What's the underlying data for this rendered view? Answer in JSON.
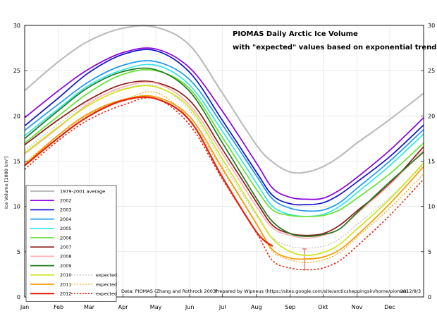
{
  "chart_data": {
    "type": "line",
    "title": "PIOMAS Daily Arctic Ice Volume",
    "subtitle": "with \"expected\" values based on exponential trends",
    "ylabel": "Ice Volume [1000 km³]",
    "xlabel": "",
    "ylim": [
      0,
      30
    ],
    "xlim": [
      0,
      365
    ],
    "yticks": [
      0,
      5,
      10,
      15,
      20,
      25,
      30
    ],
    "month_labels": [
      "Jan",
      "Feb",
      "Mar",
      "Apr",
      "May",
      "Jun",
      "Jul",
      "Aug",
      "Sep",
      "Okt",
      "Nov",
      "Dec"
    ],
    "month_days": [
      0,
      31,
      59,
      90,
      120,
      151,
      181,
      212,
      243,
      273,
      304,
      334
    ],
    "grid": true,
    "legend_position": "bottom-left",
    "expected_label": "expected",
    "x_days": [
      0,
      31,
      59,
      90,
      120,
      151,
      181,
      212,
      227,
      243,
      258,
      273,
      288,
      304,
      334,
      365
    ],
    "series": [
      {
        "name": "1979-2001 average",
        "color": "#bdbdbd",
        "width": 2.2,
        "dash": "",
        "values": [
          22.8,
          26.0,
          28.3,
          29.7,
          29.8,
          27.8,
          22.5,
          16.8,
          14.9,
          13.8,
          13.8,
          14.4,
          15.5,
          17.0,
          19.6,
          22.5
        ]
      },
      {
        "name": "2002",
        "color": "#8b00e0",
        "width": 1.7,
        "dash": "",
        "values": [
          19.8,
          22.8,
          25.2,
          27.0,
          27.4,
          25.3,
          20.5,
          14.8,
          12.0,
          11.0,
          10.8,
          10.9,
          11.8,
          13.2,
          16.2,
          19.8
        ]
      },
      {
        "name": "2003",
        "color": "#1010cc",
        "width": 1.7,
        "dash": "",
        "values": [
          18.9,
          22.0,
          24.8,
          26.8,
          27.2,
          24.8,
          19.5,
          13.8,
          11.2,
          10.3,
          10.2,
          10.4,
          11.3,
          12.7,
          15.5,
          19.0
        ]
      },
      {
        "name": "2004",
        "color": "#1e9bf0",
        "width": 1.7,
        "dash": "",
        "values": [
          18.4,
          21.3,
          23.8,
          25.6,
          26.0,
          24.0,
          19.0,
          13.4,
          10.8,
          9.8,
          9.5,
          9.6,
          10.4,
          12.0,
          15.0,
          18.5
        ]
      },
      {
        "name": "2005",
        "color": "#2fe7e4",
        "width": 1.7,
        "dash": "",
        "values": [
          17.8,
          20.8,
          23.4,
          25.1,
          25.6,
          23.4,
          18.3,
          12.6,
          10.0,
          9.1,
          8.9,
          9.1,
          10.0,
          11.5,
          14.5,
          18.0
        ]
      },
      {
        "name": "2006",
        "color": "#66e233",
        "width": 1.7,
        "dash": "",
        "values": [
          17.0,
          20.0,
          22.6,
          24.6,
          25.0,
          23.0,
          17.6,
          11.9,
          9.6,
          9.0,
          8.9,
          9.0,
          9.6,
          10.9,
          13.6,
          17.0
        ]
      },
      {
        "name": "2007",
        "color": "#8b1c1c",
        "width": 1.7,
        "dash": "",
        "values": [
          16.8,
          19.6,
          21.8,
          23.5,
          23.7,
          21.7,
          16.3,
          10.5,
          7.9,
          7.0,
          6.8,
          7.0,
          7.9,
          9.5,
          12.5,
          16.6
        ]
      },
      {
        "name": "2008",
        "color": "#ffb2b2",
        "width": 1.7,
        "dash": "",
        "values": [
          15.8,
          18.7,
          21.4,
          23.2,
          23.6,
          21.2,
          15.8,
          10.0,
          7.6,
          6.8,
          6.5,
          6.8,
          7.5,
          9.2,
          12.4,
          16.2
        ]
      },
      {
        "name": "2009",
        "color": "#1c7a1c",
        "width": 1.7,
        "dash": "",
        "values": [
          17.5,
          20.6,
          23.2,
          24.9,
          25.1,
          22.7,
          17.0,
          10.9,
          8.3,
          7.0,
          6.7,
          6.9,
          7.5,
          9.3,
          12.7,
          16.0
        ]
      },
      {
        "name": "2010",
        "color": "#cfe617",
        "width": 1.7,
        "dash": "",
        "values": [
          15.9,
          18.8,
          21.2,
          22.9,
          23.2,
          20.9,
          15.2,
          9.2,
          6.4,
          5.0,
          4.6,
          4.9,
          5.8,
          7.5,
          10.8,
          14.8
        ]
      },
      {
        "name": "2011",
        "color": "#f59c00",
        "width": 1.7,
        "dash": "",
        "values": [
          14.6,
          17.9,
          20.3,
          21.8,
          22.1,
          19.9,
          14.2,
          8.1,
          5.2,
          4.3,
          4.2,
          4.4,
          5.2,
          6.8,
          10.3,
          14.4
        ]
      },
      {
        "name": "2012",
        "color": "#e8200c",
        "width": 2.2,
        "dash": "",
        "values": [
          14.5,
          17.6,
          20.0,
          21.7,
          21.9,
          19.5,
          13.2,
          7.2,
          5.6,
          null,
          null,
          null,
          null,
          null,
          null,
          null
        ]
      }
    ],
    "expected_series": [
      {
        "year": "2010",
        "color": "#bbbbbb",
        "values": [
          16.2,
          19.1,
          21.6,
          23.0,
          23.3,
          20.6,
          14.8,
          9.0,
          6.5,
          5.6,
          5.4,
          5.6,
          6.4,
          8.0,
          11.0,
          14.6
        ]
      },
      {
        "year": "2011",
        "color": "#f59c00",
        "values": [
          14.8,
          17.9,
          20.2,
          21.7,
          22.6,
          19.6,
          14.0,
          8.0,
          5.0,
          4.1,
          3.8,
          4.1,
          4.9,
          6.6,
          9.8,
          13.6
        ]
      },
      {
        "year": "2012",
        "color": "#e8200c",
        "values": [
          14.1,
          17.3,
          19.6,
          21.2,
          21.9,
          19.0,
          13.0,
          7.1,
          4.0,
          3.2,
          3.0,
          3.2,
          4.0,
          5.6,
          9.0,
          13.0
        ]
      }
    ],
    "error_bar": {
      "day": 256,
      "low": 3.0,
      "high": 5.3,
      "color": "#e8200c"
    },
    "annotations": {
      "source": "Data: PIOMAS (Zhang and Rothrock 2003)",
      "prepared_by": "Prepared by Wipneus (https://sites.google.com/site/arcticsheppingsin/home/piomas)",
      "date": "2012/8/3"
    }
  }
}
